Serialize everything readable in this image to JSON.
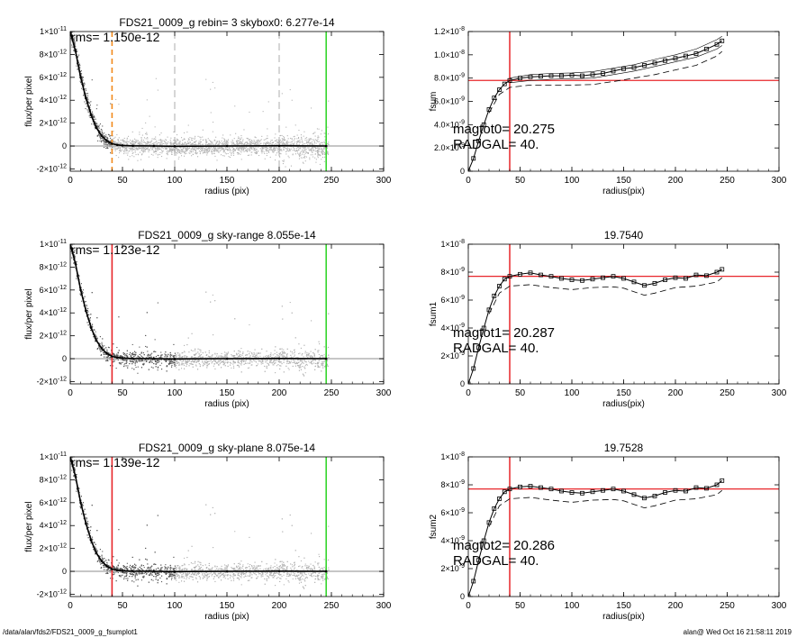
{
  "footer": {
    "left": "/data/alan/fds2/FDS21_0009_g_fsumplot1",
    "right": "alan@  Wed Oct 16 21:58:11 2019"
  },
  "colors": {
    "axis": "#000000",
    "scatter_dark": "#555555",
    "scatter_light": "#b4b4b4",
    "profile": "#000000",
    "red": "#e8262a",
    "green": "#37d62e",
    "orange": "#f28a1c",
    "grey_dash": "#9a9a9a"
  },
  "chart_data": [
    {
      "type": "scatter",
      "title": "FDS21_0009_g rebin= 3    skybox0:  6.277e-14",
      "xlabel": "radius (pix)",
      "ylabel": "flux/per pixel",
      "xlim": [
        0,
        300
      ],
      "ylim": [
        -2.2e-12,
        1e-11
      ],
      "xticks": [
        0,
        50,
        100,
        150,
        200,
        250,
        300
      ],
      "xtick_labels": [
        "0",
        "50",
        "100",
        "150",
        "200",
        "250",
        "300"
      ],
      "yticks": [
        -2e-12,
        0,
        2e-12,
        4e-12,
        6e-12,
        8e-12,
        1e-11
      ],
      "ytick_mantissa": [
        "-2×10",
        "0",
        "2×10",
        "4×10",
        "6×10",
        "8×10",
        "1×10"
      ],
      "ytick_exp": [
        "-12",
        "",
        "-12",
        "-12",
        "-12",
        "-12",
        "-11"
      ],
      "annotation": "rms= 1.150e-12",
      "vlines": [
        {
          "x": 40,
          "color": "orange",
          "style": "dashed"
        },
        {
          "x": 100,
          "color": "grey_dash",
          "style": "dashed"
        },
        {
          "x": 200,
          "color": "grey_dash",
          "style": "dashed"
        },
        {
          "x": 245,
          "color": "green",
          "style": "solid"
        }
      ],
      "hline": {
        "y": 0,
        "color": "scatter_light"
      },
      "profile": {
        "x": [
          0,
          5,
          10,
          15,
          20,
          25,
          30,
          35,
          40,
          45,
          50,
          60,
          80,
          100,
          150,
          200,
          245
        ],
        "y": [
          1e-11,
          8.3e-12,
          6e-12,
          4.2e-12,
          2.7e-12,
          1.6e-12,
          9e-13,
          4.5e-13,
          2e-13,
          1e-13,
          5e-14,
          2e-14,
          0,
          -2e-14,
          0,
          2e-14,
          0
        ]
      },
      "scatter": {
        "light_range": [
          40,
          245
        ],
        "spread": 1.1e-12,
        "light_spread_far": 1.6e-12
      }
    },
    {
      "type": "line",
      "title": "",
      "xlabel": "radius(pix)",
      "ylabel": "fsum",
      "xlim": [
        0,
        300
      ],
      "ylim": [
        0,
        1.2e-08
      ],
      "xticks": [
        0,
        50,
        100,
        150,
        200,
        250,
        300
      ],
      "xtick_labels": [
        "0",
        "50",
        "100",
        "150",
        "200",
        "250",
        "300"
      ],
      "yticks": [
        0,
        2e-09,
        4e-09,
        6e-09,
        8e-09,
        1e-08,
        1.2e-08
      ],
      "ytick_mantissa": [
        "0",
        "2.0×10",
        "4.0×10",
        "6.0×10",
        "8.0×10",
        "1.0×10",
        "1.2×10"
      ],
      "ytick_exp": [
        "",
        "-9",
        "-9",
        "-9",
        "-9",
        "-8",
        "-8"
      ],
      "annotations": [
        "magtot0=  20.275",
        "RADGAL=     40."
      ],
      "vline": {
        "x": 40,
        "color": "red"
      },
      "hline": {
        "y": 7.8e-09,
        "color": "red"
      },
      "series": [
        {
          "style": "markers",
          "x": [
            0,
            5,
            10,
            15,
            20,
            25,
            30,
            35,
            40,
            50,
            60,
            70,
            80,
            90,
            100,
            110,
            120,
            130,
            140,
            150,
            160,
            170,
            180,
            190,
            200,
            210,
            220,
            230,
            240,
            245
          ],
          "y": [
            0,
            1.1e-09,
            2.6e-09,
            4e-09,
            5.3e-09,
            6.3e-09,
            7e-09,
            7.5e-09,
            7.8e-09,
            8e-09,
            8.1e-09,
            8.15e-09,
            8.2e-09,
            8.2e-09,
            8.25e-09,
            8.2e-09,
            8.3e-09,
            8.4e-09,
            8.6e-09,
            8.8e-09,
            8.9e-09,
            9.1e-09,
            9.3e-09,
            9.5e-09,
            9.7e-09,
            9.9e-09,
            1.01e-08,
            1.05e-08,
            1.09e-08,
            1.12e-08
          ]
        },
        {
          "style": "solid_thin",
          "x": [
            40,
            60,
            80,
            100,
            120,
            140,
            160,
            180,
            200,
            220,
            240,
            245
          ],
          "y": [
            8e-09,
            8.3e-09,
            8.4e-09,
            8.45e-09,
            8.55e-09,
            8.85e-09,
            9.15e-09,
            9.6e-09,
            1e-08,
            1.05e-08,
            1.13e-08,
            1.16e-08
          ]
        },
        {
          "style": "solid_thin",
          "x": [
            40,
            60,
            80,
            100,
            120,
            140,
            160,
            180,
            200,
            220,
            240,
            245
          ],
          "y": [
            7.6e-09,
            7.8e-09,
            7.9e-09,
            7.95e-09,
            8e-09,
            8.3e-09,
            8.6e-09,
            9e-09,
            9.4e-09,
            9.8e-09,
            1.05e-08,
            1.08e-08
          ]
        },
        {
          "style": "dashed",
          "x": [
            20,
            30,
            40,
            60,
            80,
            100,
            120,
            140,
            160,
            180,
            200,
            220,
            240,
            245
          ],
          "y": [
            5e-09,
            6.6e-09,
            7.2e-09,
            7.4e-09,
            7.4e-09,
            7.4e-09,
            7.45e-09,
            7.7e-09,
            8e-09,
            8.3e-09,
            8.7e-09,
            9.1e-09,
            9.9e-09,
            1.03e-08
          ]
        }
      ]
    },
    {
      "type": "scatter",
      "title": "FDS21_0009_g sky-range  8.055e-14",
      "xlabel": "radius (pix)",
      "ylabel": "flux/per pixel",
      "xlim": [
        0,
        300
      ],
      "ylim": [
        -2.2e-12,
        1e-11
      ],
      "xticks": [
        0,
        50,
        100,
        150,
        200,
        250,
        300
      ],
      "xtick_labels": [
        "0",
        "50",
        "100",
        "150",
        "200",
        "250",
        "300"
      ],
      "yticks": [
        -2e-12,
        0,
        2e-12,
        4e-12,
        6e-12,
        8e-12,
        1e-11
      ],
      "ytick_mantissa": [
        "-2×10",
        "0",
        "2×10",
        "4×10",
        "6×10",
        "8×10",
        "1×10"
      ],
      "ytick_exp": [
        "-12",
        "",
        "-12",
        "-12",
        "-12",
        "-12",
        "-11"
      ],
      "annotation": "rms= 1.123e-12",
      "vlines": [
        {
          "x": 40,
          "color": "red",
          "style": "solid"
        },
        {
          "x": 245,
          "color": "green",
          "style": "solid"
        }
      ],
      "hline": {
        "y": 0,
        "color": "scatter_light"
      },
      "profile": {
        "x": [
          0,
          5,
          10,
          15,
          20,
          25,
          30,
          35,
          40,
          45,
          50,
          60,
          80,
          100,
          150,
          200,
          245
        ],
        "y": [
          1e-11,
          8.3e-12,
          6e-12,
          4.2e-12,
          2.7e-12,
          1.6e-12,
          9e-13,
          4.5e-13,
          2e-13,
          1e-13,
          5e-14,
          2e-14,
          0,
          -2e-14,
          0,
          2e-14,
          0
        ]
      },
      "scatter": {
        "light_range": [
          100,
          200
        ],
        "spread": 1.1e-12,
        "light_spread_far": 1.5e-12
      }
    },
    {
      "type": "line",
      "title": "19.7540",
      "xlabel": "radius(pix)",
      "ylabel": "fsum1",
      "xlim": [
        0,
        300
      ],
      "ylim": [
        0,
        1e-08
      ],
      "xticks": [
        0,
        50,
        100,
        150,
        200,
        250,
        300
      ],
      "xtick_labels": [
        "0",
        "50",
        "100",
        "150",
        "200",
        "250",
        "300"
      ],
      "yticks": [
        0,
        2e-09,
        4e-09,
        6e-09,
        8e-09,
        1e-08
      ],
      "ytick_mantissa": [
        "0",
        "2×10",
        "4×10",
        "6×10",
        "8×10",
        "1×10"
      ],
      "ytick_exp": [
        "",
        "-9",
        "-9",
        "-9",
        "-9",
        "-8"
      ],
      "annotations": [
        "magtot1=  20.287",
        "RADGAL=     40."
      ],
      "vline": {
        "x": 40,
        "color": "red"
      },
      "hline": {
        "y": 7.7e-09,
        "color": "red"
      },
      "series": [
        {
          "style": "markers",
          "x": [
            0,
            5,
            10,
            15,
            20,
            25,
            30,
            35,
            40,
            50,
            60,
            70,
            80,
            90,
            100,
            110,
            120,
            130,
            140,
            150,
            160,
            170,
            180,
            190,
            200,
            210,
            220,
            230,
            240,
            245
          ],
          "y": [
            0,
            1.1e-09,
            2.6e-09,
            4e-09,
            5.3e-09,
            6.3e-09,
            7e-09,
            7.5e-09,
            7.7e-09,
            7.85e-09,
            7.95e-09,
            7.8e-09,
            7.7e-09,
            7.55e-09,
            7.45e-09,
            7.4e-09,
            7.5e-09,
            7.6e-09,
            7.7e-09,
            7.55e-09,
            7.3e-09,
            7.05e-09,
            7.2e-09,
            7.45e-09,
            7.6e-09,
            7.55e-09,
            7.8e-09,
            7.75e-09,
            8e-09,
            8.2e-09
          ]
        },
        {
          "style": "dashed",
          "x": [
            20,
            30,
            40,
            60,
            80,
            100,
            120,
            140,
            150,
            160,
            170,
            180,
            200,
            220,
            240,
            245
          ],
          "y": [
            5e-09,
            6.5e-09,
            7e-09,
            7.1e-09,
            6.9e-09,
            6.75e-09,
            6.9e-09,
            6.95e-09,
            6.85e-09,
            6.6e-09,
            6.35e-09,
            6.5e-09,
            6.9e-09,
            7e-09,
            7.3e-09,
            7.6e-09
          ]
        }
      ]
    },
    {
      "type": "scatter",
      "title": "FDS21_0009_g sky-plane  8.075e-14",
      "xlabel": "radius (pix)",
      "ylabel": "flux/per pixel",
      "xlim": [
        0,
        300
      ],
      "ylim": [
        -2.2e-12,
        1e-11
      ],
      "xticks": [
        0,
        50,
        100,
        150,
        200,
        250,
        300
      ],
      "xtick_labels": [
        "0",
        "50",
        "100",
        "150",
        "200",
        "250",
        "300"
      ],
      "yticks": [
        -2e-12,
        0,
        2e-12,
        4e-12,
        6e-12,
        8e-12,
        1e-11
      ],
      "ytick_mantissa": [
        "-2×10",
        "0",
        "2×10",
        "4×10",
        "6×10",
        "8×10",
        "1×10"
      ],
      "ytick_exp": [
        "-12",
        "",
        "-12",
        "-12",
        "-12",
        "-12",
        "-11"
      ],
      "annotation": "rms= 1.139e-12",
      "vlines": [
        {
          "x": 40,
          "color": "red",
          "style": "solid"
        },
        {
          "x": 245,
          "color": "green",
          "style": "solid"
        }
      ],
      "hline": {
        "y": 0,
        "color": "scatter_light"
      },
      "profile": {
        "x": [
          0,
          5,
          10,
          15,
          20,
          25,
          30,
          35,
          40,
          45,
          50,
          60,
          80,
          100,
          150,
          200,
          245
        ],
        "y": [
          1e-11,
          8.3e-12,
          6e-12,
          4.2e-12,
          2.7e-12,
          1.6e-12,
          9e-13,
          4.5e-13,
          2e-13,
          1e-13,
          5e-14,
          2e-14,
          0,
          -2e-14,
          0,
          2e-14,
          0
        ]
      },
      "scatter": {
        "light_range": [
          100,
          200
        ],
        "spread": 1.1e-12,
        "light_spread_far": 1.5e-12
      }
    },
    {
      "type": "line",
      "title": "19.7528",
      "xlabel": "radius(pix)",
      "ylabel": "fsum2",
      "xlim": [
        0,
        300
      ],
      "ylim": [
        0,
        1e-08
      ],
      "xticks": [
        0,
        50,
        100,
        150,
        200,
        250,
        300
      ],
      "xtick_labels": [
        "0",
        "50",
        "100",
        "150",
        "200",
        "250",
        "300"
      ],
      "yticks": [
        0,
        2e-09,
        4e-09,
        6e-09,
        8e-09,
        1e-08
      ],
      "ytick_mantissa": [
        "0",
        "2×10",
        "4×10",
        "6×10",
        "8×10",
        "1×10"
      ],
      "ytick_exp": [
        "",
        "-9",
        "-9",
        "-9",
        "-9",
        "-8"
      ],
      "annotations": [
        "magtot2=  20.286",
        "RADGAL=     40."
      ],
      "vline": {
        "x": 40,
        "color": "red"
      },
      "hline": {
        "y": 7.7e-09,
        "color": "red"
      },
      "series": [
        {
          "style": "markers",
          "x": [
            0,
            5,
            10,
            15,
            20,
            25,
            30,
            35,
            40,
            50,
            60,
            70,
            80,
            90,
            100,
            110,
            120,
            130,
            140,
            150,
            160,
            170,
            180,
            190,
            200,
            210,
            220,
            230,
            240,
            245
          ],
          "y": [
            0,
            1.1e-09,
            2.6e-09,
            4e-09,
            5.3e-09,
            6.3e-09,
            7e-09,
            7.5e-09,
            7.7e-09,
            7.85e-09,
            7.9e-09,
            7.8e-09,
            7.7e-09,
            7.55e-09,
            7.45e-09,
            7.4e-09,
            7.5e-09,
            7.6e-09,
            7.7e-09,
            7.55e-09,
            7.3e-09,
            7.05e-09,
            7.2e-09,
            7.45e-09,
            7.6e-09,
            7.55e-09,
            7.8e-09,
            7.75e-09,
            8e-09,
            8.3e-09
          ]
        },
        {
          "style": "dashed",
          "x": [
            20,
            30,
            40,
            60,
            80,
            100,
            120,
            140,
            150,
            160,
            170,
            180,
            200,
            220,
            240,
            245
          ],
          "y": [
            5e-09,
            6.5e-09,
            7e-09,
            7.1e-09,
            6.9e-09,
            6.75e-09,
            6.9e-09,
            6.95e-09,
            6.85e-09,
            6.6e-09,
            6.35e-09,
            6.5e-09,
            6.9e-09,
            7e-09,
            7.3e-09,
            7.6e-09
          ]
        }
      ]
    }
  ]
}
